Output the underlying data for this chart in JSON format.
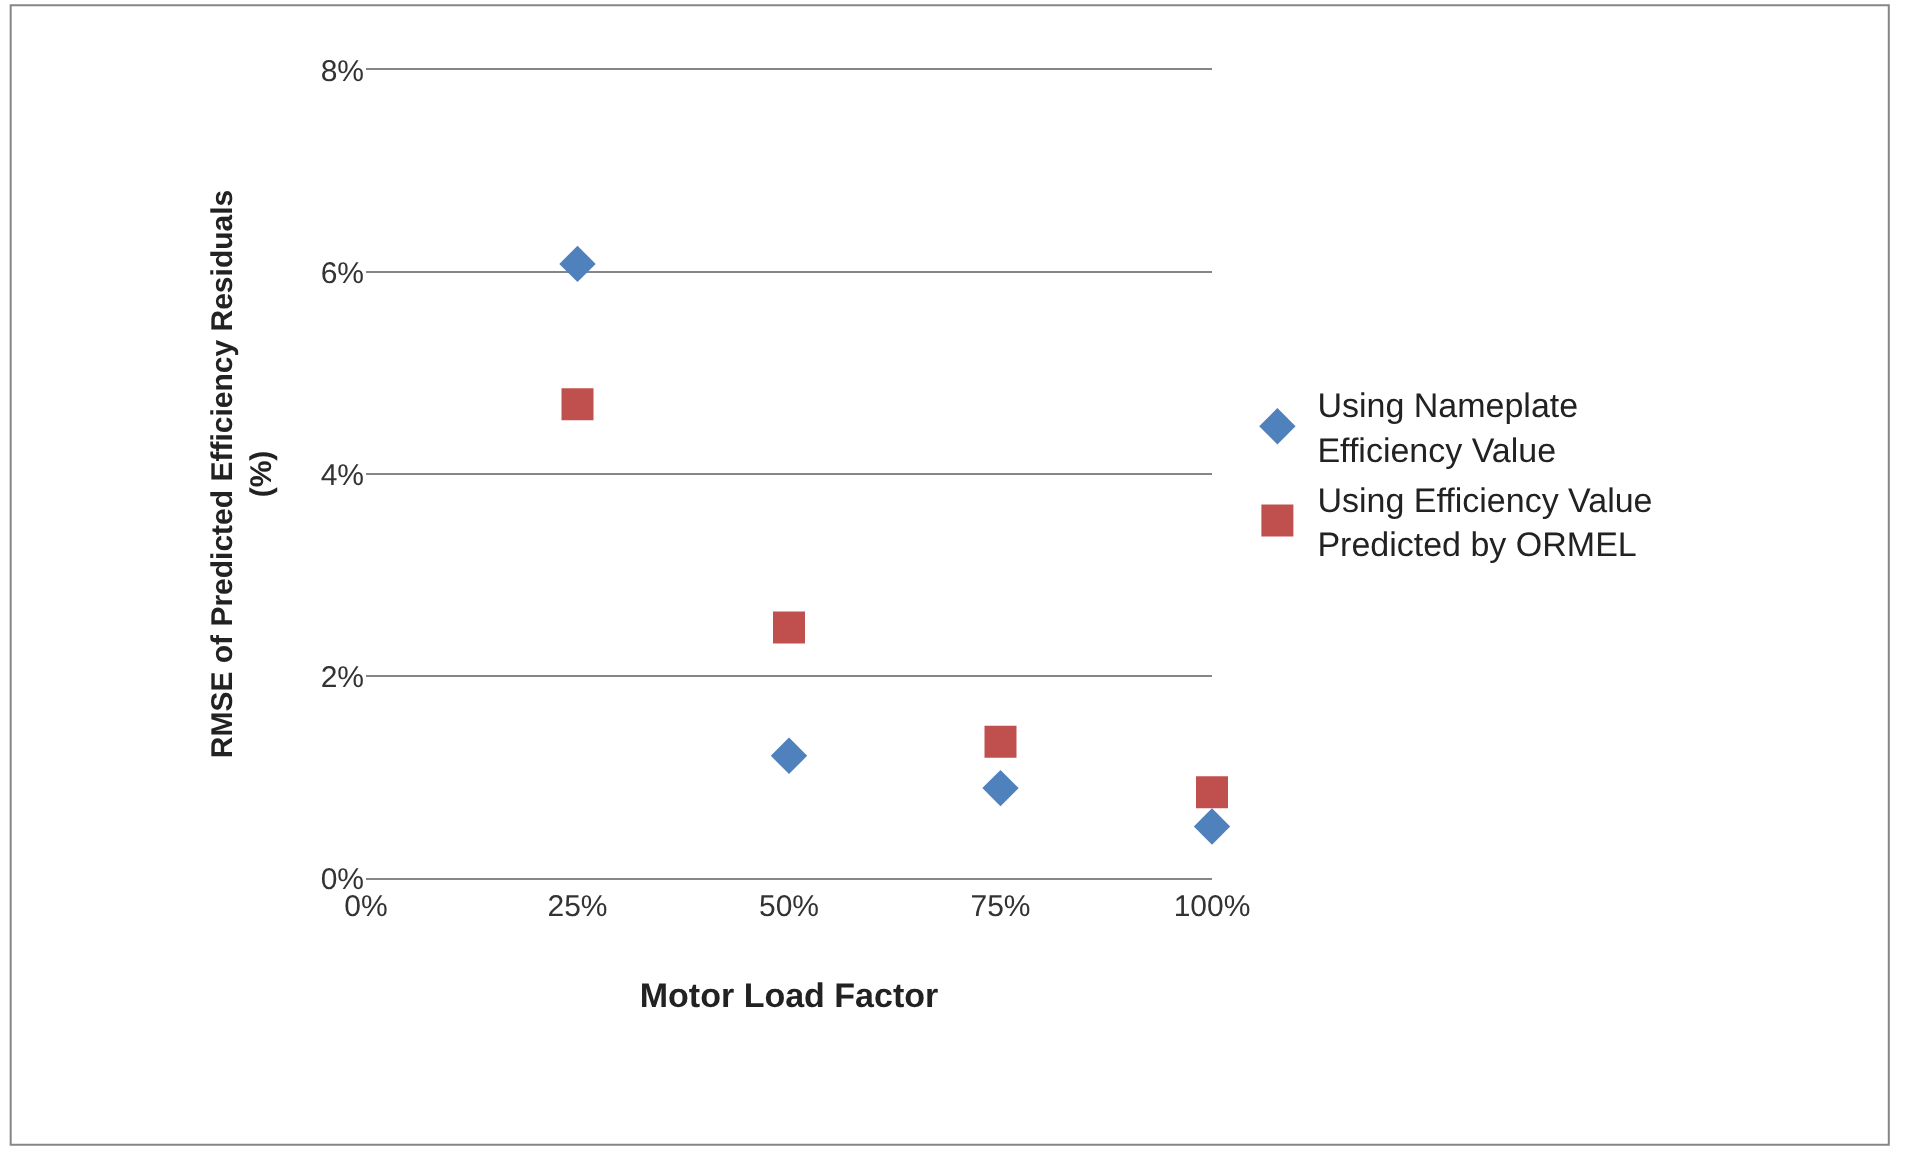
{
  "chart_data": {
    "type": "scatter",
    "xlabel": "Motor Load Factor",
    "ylabel": "RMSE of Predicted Efficiency Residuals (%)",
    "series": [
      {
        "name": "Using Nameplate Efficiency Value",
        "color": "#4f81bd",
        "marker": "diamond",
        "x": [
          25,
          50,
          75,
          100
        ],
        "values": [
          6.08,
          1.21,
          0.89,
          0.51
        ]
      },
      {
        "name": "Using Efficiency Value Predicted by ORMEL",
        "color": "#c0504d",
        "marker": "square",
        "x": [
          25,
          50,
          75,
          100
        ],
        "values": [
          4.69,
          2.48,
          1.35,
          0.85
        ]
      }
    ],
    "xlim": [
      0,
      100
    ],
    "xticks": [
      {
        "value": 0,
        "label": "0%"
      },
      {
        "value": 25,
        "label": "25%"
      },
      {
        "value": 50,
        "label": "50%"
      },
      {
        "value": 75,
        "label": "75%"
      },
      {
        "value": 100,
        "label": "100%"
      }
    ],
    "ylim": [
      0,
      8
    ],
    "yticks": [
      {
        "value": 0,
        "label": "0%"
      },
      {
        "value": 2,
        "label": "2%"
      },
      {
        "value": 4,
        "label": "4%"
      },
      {
        "value": 6,
        "label": "6%"
      },
      {
        "value": 8,
        "label": "8%"
      }
    ],
    "grid": "y",
    "legend": "right"
  }
}
